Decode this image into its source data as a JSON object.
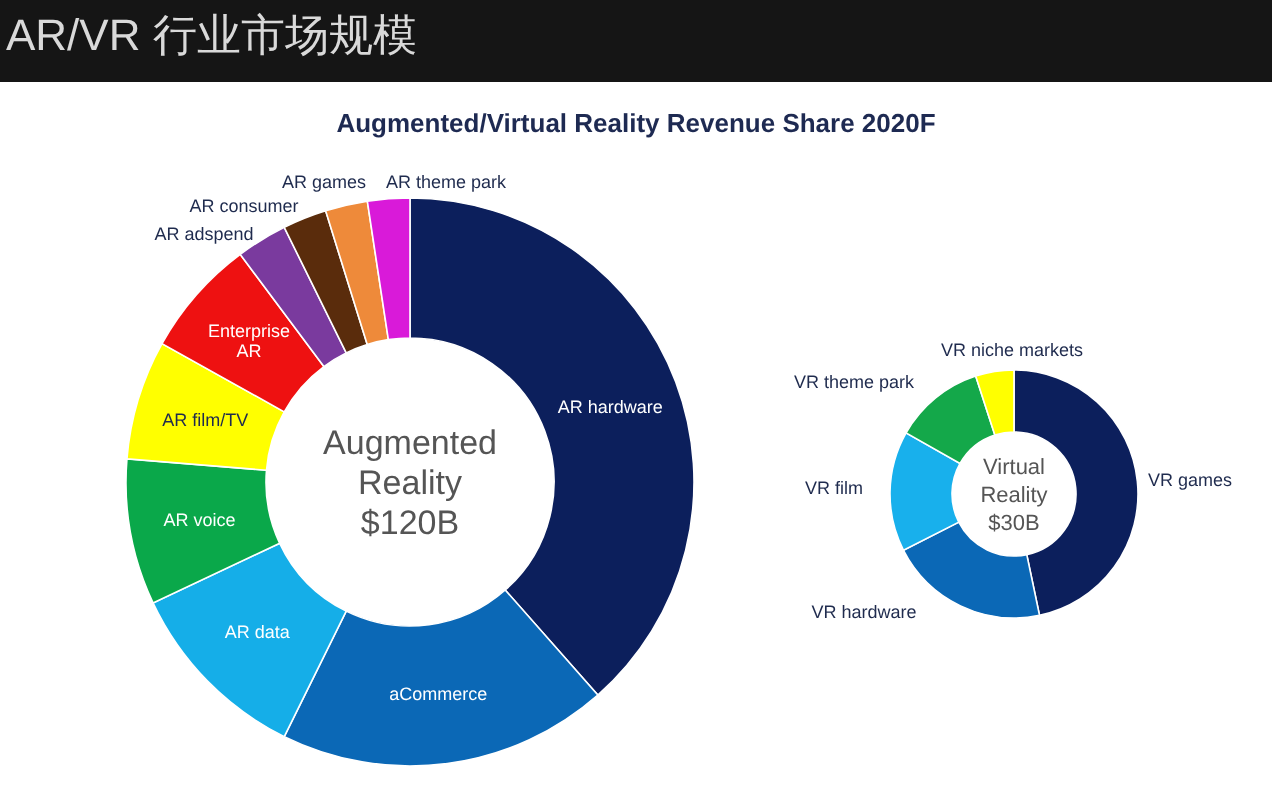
{
  "chart_data": [
    {
      "type": "donut",
      "title": "AR/VR 行业市场规模",
      "subtitle": "Augmented/Virtual Reality Revenue Share 2020F",
      "categories": [
        "AR hardware",
        "aCommerce",
        "AR data",
        "AR voice",
        "AR film/TV",
        "Enterprise AR",
        "AR adspend",
        "AR consumer",
        "AR games",
        "AR theme park"
      ],
      "values": [
        38.5,
        18.8,
        10.7,
        8.3,
        6.8,
        6.7,
        2.9,
        2.5,
        2.4,
        2.4
      ],
      "colors": [
        "#0c1f5c",
        "#0b68b6",
        "#15aee8",
        "#0aa84a",
        "#ffff00",
        "#ee1111",
        "#7a3a9e",
        "#5a2c0c",
        "#ee8a3a",
        "#d91ad9"
      ],
      "annotations": [
        "Augmented Reality $120B"
      ],
      "legend": false
    },
    {
      "type": "donut",
      "categories": [
        "VR games",
        "VR hardware",
        "VR film",
        "VR theme park",
        "VR niche markets"
      ],
      "values": [
        46.7,
        20.8,
        15.7,
        11.8,
        5.0
      ],
      "colors": [
        "#0c1f5c",
        "#0b68b6",
        "#18b0ec",
        "#14a84a",
        "#ffff00"
      ],
      "annotations": [
        "Virtual Reality $30B"
      ],
      "legend": false
    }
  ]
}
